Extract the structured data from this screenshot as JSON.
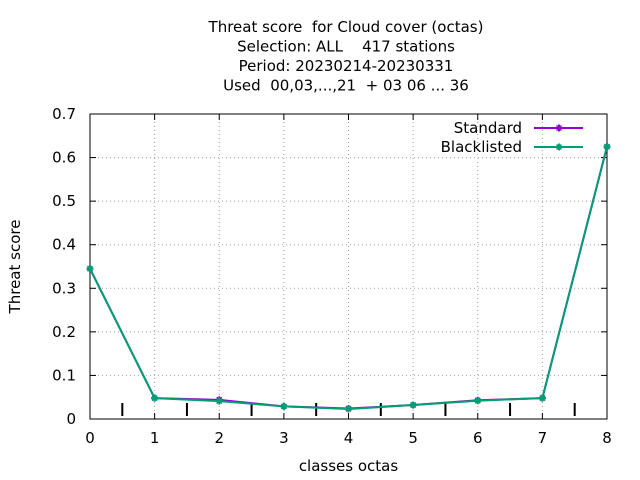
{
  "chart_data": {
    "type": "line",
    "title_lines": [
      "Threat score  for Cloud cover (octas)",
      "Selection: ALL    417 stations",
      "Period: 20230214-20230331",
      "Used  00,03,...,21  + 03 06 ... 36"
    ],
    "xlabel": "classes octas",
    "ylabel": "Threat score",
    "xlim": [
      0,
      8
    ],
    "ylim": [
      0,
      0.7
    ],
    "x_ticks": [
      0,
      1,
      2,
      3,
      4,
      5,
      6,
      7,
      8
    ],
    "y_ticks": [
      0,
      0.1,
      0.2,
      0.3,
      0.4,
      0.5,
      0.6,
      0.7
    ],
    "y_tick_labels": [
      "0",
      "0.1",
      "0.2",
      "0.3",
      "0.4",
      "0.5",
      "0.6",
      "0.7"
    ],
    "grid": true,
    "legend_position": "top-right",
    "x_markers": [
      0.5,
      1.5,
      2.5,
      3.5,
      4.5,
      5.5,
      6.5,
      7.5
    ],
    "series": [
      {
        "name": "Standard",
        "color": "#9400d3",
        "x": [
          0,
          1,
          2,
          3,
          4,
          5,
          6,
          7,
          8
        ],
        "values": [
          0.345,
          0.048,
          0.044,
          0.029,
          0.024,
          0.032,
          0.043,
          0.048,
          0.625
        ]
      },
      {
        "name": "Blacklisted",
        "color": "#009e73",
        "x": [
          0,
          1,
          2,
          3,
          4,
          5,
          6,
          7,
          8
        ],
        "values": [
          0.345,
          0.048,
          0.041,
          0.029,
          0.023,
          0.032,
          0.042,
          0.048,
          0.625
        ]
      }
    ]
  }
}
